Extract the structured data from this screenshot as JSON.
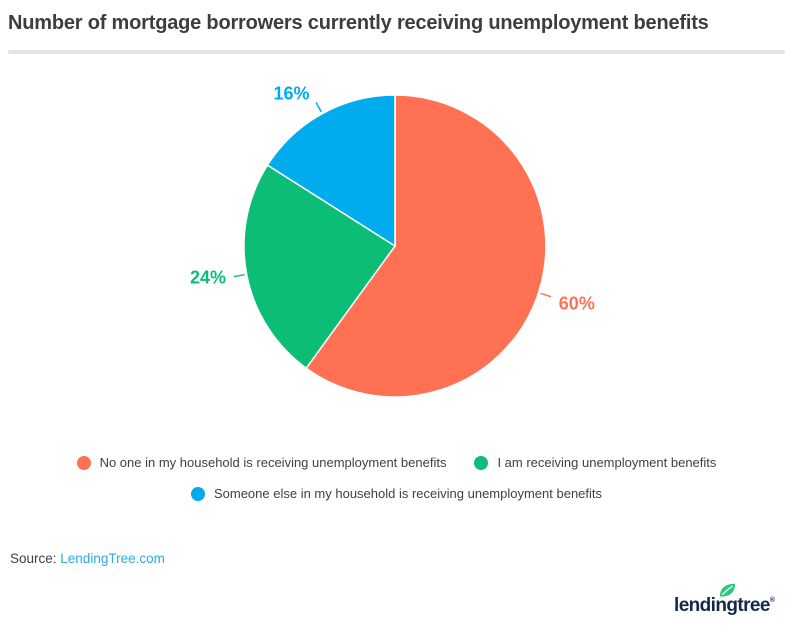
{
  "title": "Number of mortgage borrowers currently receiving unemployment benefits",
  "source": {
    "prefix": "Source: ",
    "link_text": "LendingTree.com",
    "link_color": "#29abe2"
  },
  "logo": {
    "text": "lendingtree",
    "mark": "®",
    "text_color": "#13294b",
    "leaf_color": "#2ec97e"
  },
  "chart_data": {
    "type": "pie",
    "title": "Number of mortgage borrowers currently receiving unemployment benefits",
    "unit": "%",
    "start_angle_deg": 0,
    "direction": "clockwise",
    "slices": [
      {
        "label": "No one in my household is receiving unemployment benefits",
        "value": 60,
        "display": "60%",
        "color": "#ff7152"
      },
      {
        "label": "I am receiving unemployment benefits",
        "value": 24,
        "display": "24%",
        "color": "#0cbe75"
      },
      {
        "label": "Someone else in my household is receiving unemployment benefits",
        "value": 16,
        "display": "16%",
        "color": "#00acee"
      }
    ],
    "legend_rows": [
      [
        0,
        1
      ],
      [
        2
      ]
    ],
    "legend_position": "bottom",
    "grid": false
  }
}
